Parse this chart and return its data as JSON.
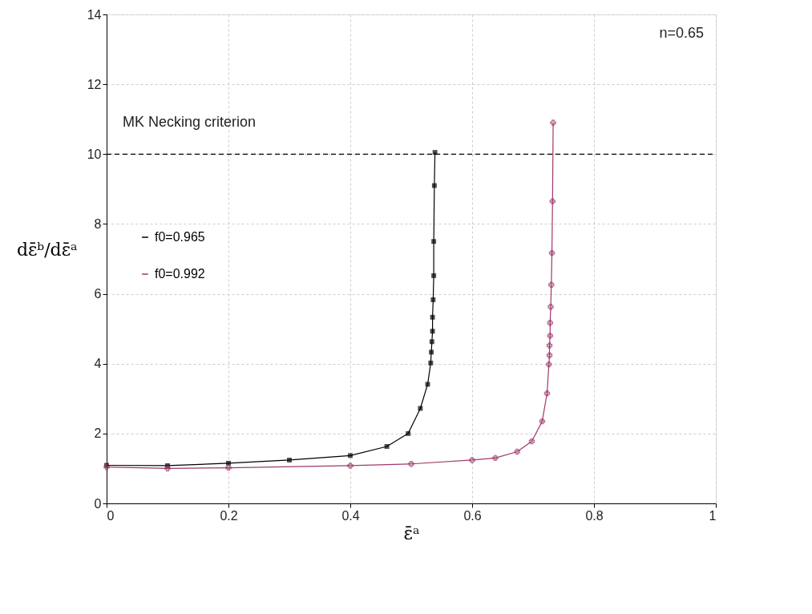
{
  "chart_data": {
    "type": "line",
    "xlabel": "ε̄ᵃ",
    "ylabel": "dε̄ᵇ/dε̄ᵃ",
    "xlim": [
      0,
      1
    ],
    "xticks": [
      0,
      0.2,
      0.4,
      0.6,
      0.8,
      1
    ],
    "ylim": [
      0,
      14
    ],
    "yticks": [
      0,
      2,
      4,
      6,
      8,
      10,
      12,
      14
    ],
    "grid": true,
    "legend": "left",
    "line_style": "solid",
    "annotations": [
      {
        "text": "n=0.65"
      }
    ],
    "ref_lines": [
      {
        "axis": "y",
        "value": 10,
        "label": "MK Necking criterion",
        "color": "#000000",
        "line_style": "dashed"
      }
    ],
    "series": [
      {
        "name": "f0=0.965",
        "color": "#000000",
        "marker": "square",
        "x": [
          0,
          0.1,
          0.2,
          0.3,
          0.4,
          0.46,
          0.495,
          0.515,
          0.527,
          0.532,
          0.533,
          0.534,
          0.535,
          0.535,
          0.536,
          0.537,
          0.537,
          0.538,
          0.539
        ],
        "values": [
          1.09,
          1.08,
          1.15,
          1.24,
          1.37,
          1.63,
          2.0,
          2.72,
          3.41,
          4.02,
          4.33,
          4.63,
          4.93,
          5.33,
          5.83,
          6.52,
          7.5,
          9.1,
          10.05
        ]
      },
      {
        "name": "f0=0.992",
        "color": "#9e3a6a",
        "marker": "cross",
        "x": [
          0,
          0.1,
          0.2,
          0.4,
          0.5,
          0.6,
          0.638,
          0.674,
          0.698,
          0.715,
          0.723,
          0.726,
          0.727,
          0.727,
          0.728,
          0.728,
          0.729,
          0.73,
          0.731,
          0.732,
          0.733
        ],
        "values": [
          1.04,
          1.0,
          1.02,
          1.08,
          1.13,
          1.24,
          1.3,
          1.48,
          1.78,
          2.35,
          3.15,
          3.98,
          4.24,
          4.52,
          4.8,
          5.17,
          5.63,
          6.26,
          7.17,
          8.65,
          10.9
        ]
      }
    ]
  }
}
